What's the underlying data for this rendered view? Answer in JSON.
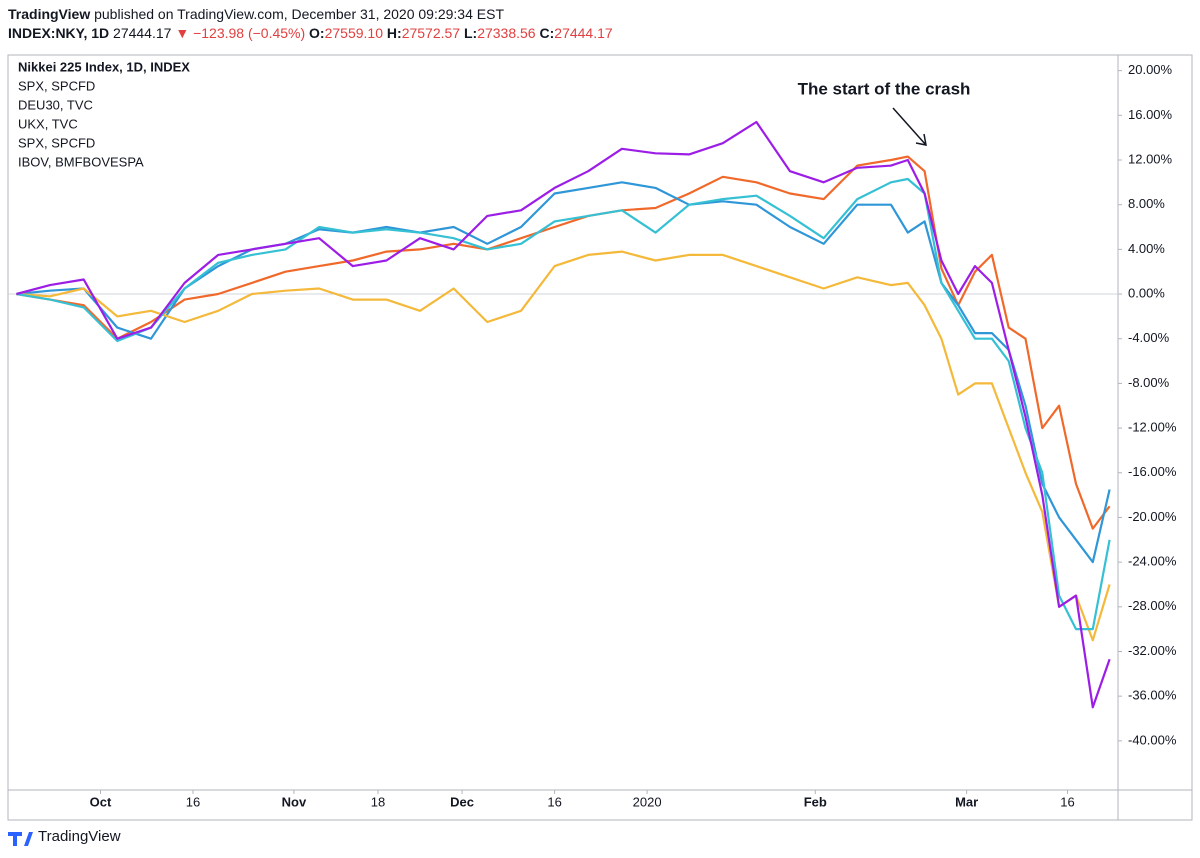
{
  "header": {
    "brand": "TradingView",
    "published": "published on TradingView.com, December 31, 2020 09:29:34 EST",
    "symbol": "INDEX:NKY, 1D",
    "last": "27444.17",
    "change": "▼ −123.98 (−0.45%)",
    "open_label": "O:",
    "open": "27559.10",
    "high_label": "H:",
    "high": "27572.57",
    "low_label": "L:",
    "low": "27338.56",
    "close_label": "C:",
    "close": "27444.17"
  },
  "chart_data": {
    "type": "line",
    "title": "Nikkei 225 Index, 1D, INDEX",
    "annotation": "The start of the crash",
    "x": [
      0,
      4,
      8,
      12,
      16,
      20,
      24,
      28,
      32,
      36,
      40,
      44,
      48,
      52,
      56,
      60,
      64,
      68,
      72,
      76,
      80,
      84,
      88,
      92,
      96,
      100,
      104,
      106,
      108,
      110,
      112,
      114,
      116,
      118,
      120,
      122,
      124,
      126,
      128,
      130
    ],
    "xlim": [
      -1,
      131
    ],
    "xticks": [
      {
        "value": 10,
        "label": "Oct"
      },
      {
        "value": 21,
        "label": "16"
      },
      {
        "value": 33,
        "label": "Nov"
      },
      {
        "value": 43,
        "label": "18"
      },
      {
        "value": 53,
        "label": "Dec"
      },
      {
        "value": 64,
        "label": "16"
      },
      {
        "value": 75,
        "label": "2020"
      },
      {
        "value": 95,
        "label": "Feb"
      },
      {
        "value": 113,
        "label": "Mar"
      },
      {
        "value": 125,
        "label": "16"
      }
    ],
    "ylim": [
      -44.4,
      21.4
    ],
    "yticks": [
      {
        "value": 20,
        "label": "20.00%"
      },
      {
        "value": 16,
        "label": "16.00%"
      },
      {
        "value": 12,
        "label": "12.00%"
      },
      {
        "value": 8,
        "label": "8.00%"
      },
      {
        "value": 4,
        "label": "4.00%"
      },
      {
        "value": 0,
        "label": "0.00%"
      },
      {
        "value": -4,
        "label": "-4.00%"
      },
      {
        "value": -8,
        "label": "-8.00%"
      },
      {
        "value": -12,
        "label": "-12.00%"
      },
      {
        "value": -16,
        "label": "-16.00%"
      },
      {
        "value": -20,
        "label": "-20.00%"
      },
      {
        "value": -24,
        "label": "-24.00%"
      },
      {
        "value": -28,
        "label": "-28.00%"
      },
      {
        "value": -32,
        "label": "-32.00%"
      },
      {
        "value": -36,
        "label": "-36.00%"
      },
      {
        "value": -40,
        "label": "-40.00%"
      }
    ],
    "grid": false,
    "series": [
      {
        "name": "SPX, SPCFD",
        "color": "#f0692a",
        "values": [
          0,
          -0.5,
          -1,
          -4,
          -2.5,
          -0.5,
          0,
          1,
          2,
          2.5,
          3,
          3.8,
          4,
          4.5,
          4,
          5,
          6,
          7,
          7.5,
          7.7,
          9,
          10.5,
          10,
          9,
          8.5,
          11.5,
          12,
          12.3,
          11,
          2.3,
          -1,
          2,
          3.5,
          -3,
          -4,
          -12,
          -10,
          -17,
          -21,
          -19
        ]
      },
      {
        "name": "DEU30, TVC",
        "color": "#2f96d8",
        "values": [
          0,
          0.3,
          0.5,
          -3,
          -4,
          0.5,
          2.5,
          4,
          4.5,
          5.8,
          5.5,
          6,
          5.5,
          6,
          4.5,
          6,
          9,
          9.5,
          10,
          9.5,
          8,
          8.3,
          8,
          6,
          4.5,
          8,
          8,
          5.5,
          6.5,
          1,
          -1,
          -3.5,
          -3.5,
          -5,
          -10,
          -17,
          -20,
          -22,
          -24,
          -17.5
        ]
      },
      {
        "name": "UKX, TVC",
        "color": "#f4b93a",
        "values": [
          0,
          -0.2,
          0.5,
          -2,
          -1.5,
          -2.5,
          -1.5,
          0,
          0.3,
          0.5,
          -0.5,
          -0.5,
          -1.5,
          0.5,
          -2.5,
          -1.5,
          2.5,
          3.5,
          3.8,
          3,
          3.5,
          3.5,
          2.5,
          1.5,
          0.5,
          1.5,
          0.8,
          1,
          -1,
          -4,
          -9,
          -8,
          -8,
          -12,
          -16,
          -19.5,
          -28,
          -27,
          -31,
          -26
        ]
      },
      {
        "name": "SPX, SPCFD",
        "color": "#35c0d4",
        "values": [
          0,
          -0.5,
          -1.2,
          -4.2,
          -3,
          0.5,
          2.8,
          3.5,
          4,
          6,
          5.5,
          5.8,
          5.5,
          5,
          4,
          4.5,
          6.5,
          7,
          7.5,
          5.5,
          8,
          8.5,
          8.8,
          7,
          5,
          8.5,
          10,
          10.3,
          9,
          1,
          -1.5,
          -4,
          -4,
          -6,
          -12,
          -16,
          -27,
          -30,
          -30,
          -22
        ]
      },
      {
        "name": "IBOV, BMFBOVESPA",
        "color": "#9c1ee6",
        "values": [
          0,
          0.8,
          1.3,
          -4,
          -3,
          1,
          3.5,
          4,
          4.5,
          5,
          2.5,
          3,
          5,
          4,
          7,
          7.5,
          9.5,
          11,
          13,
          12.6,
          12.5,
          13.5,
          15.4,
          11,
          10,
          11.3,
          11.5,
          12,
          9,
          3,
          0,
          2.5,
          1,
          -5,
          -11,
          -18,
          -28,
          -27,
          -37,
          -32.7
        ]
      }
    ]
  }
}
